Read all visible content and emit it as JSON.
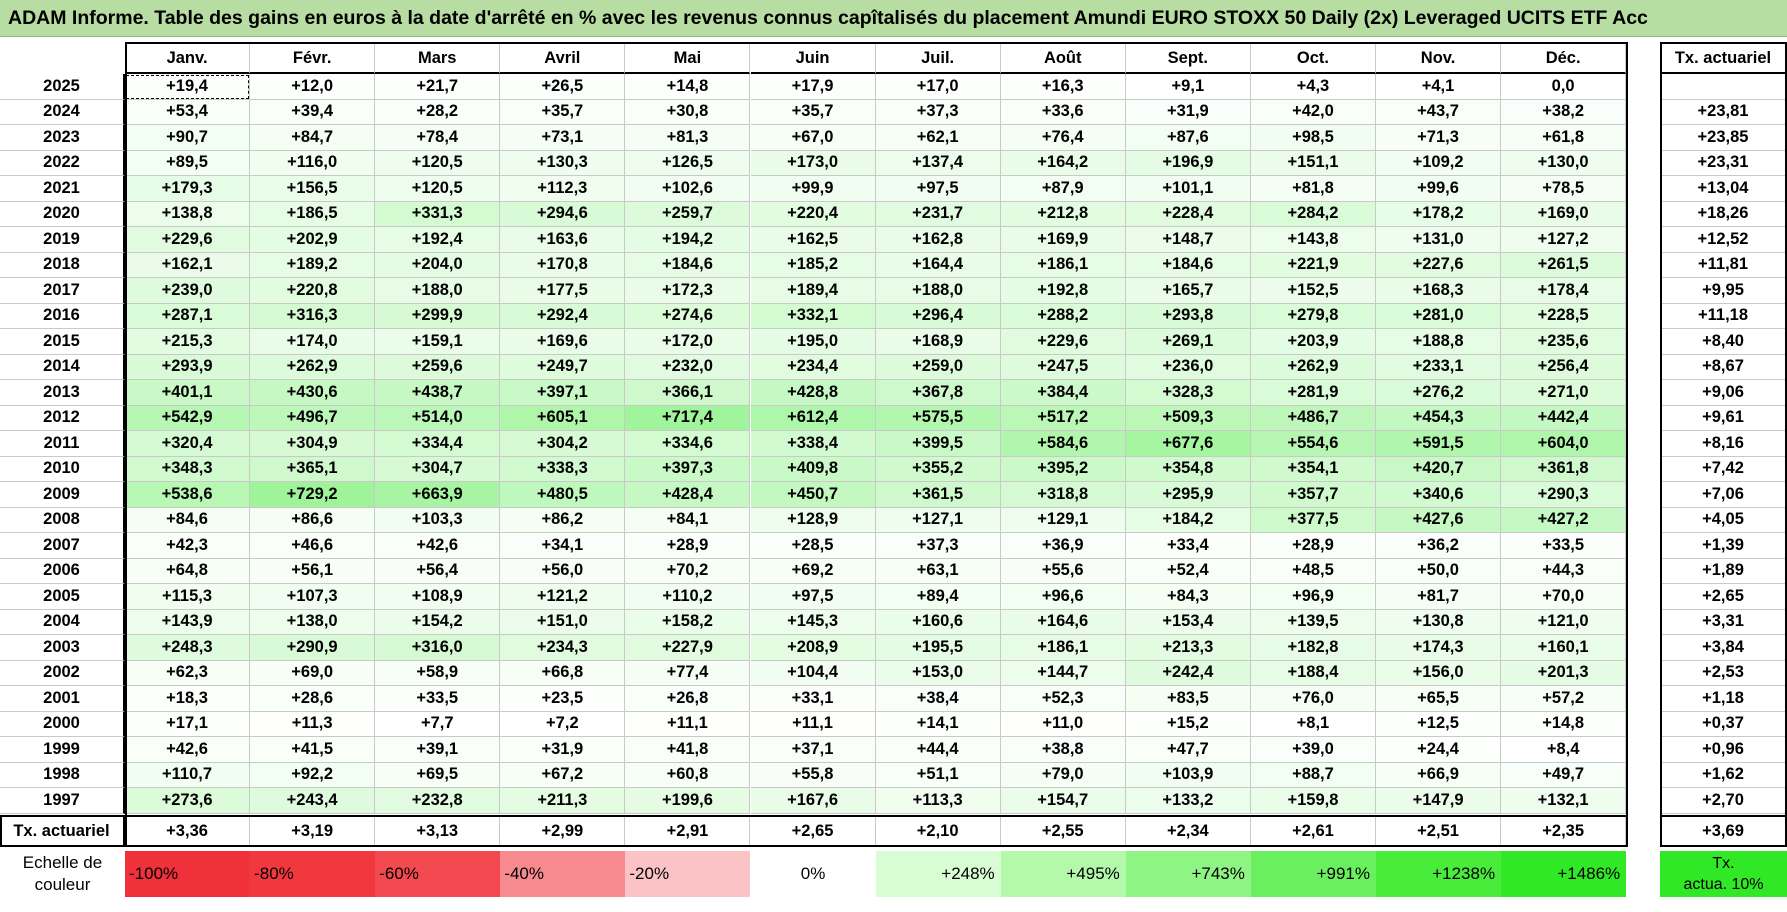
{
  "title": "ADAM Informe. Table des gains en euros à la date d'arrêté en % avec les revenus connus capîtalisés du placement Amundi EURO STOXX 50 Daily (2x) Leveraged UCITS ETF Acc",
  "months": [
    "Janv.",
    "Févr.",
    "Mars",
    "Avril",
    "Mai",
    "Juin",
    "Juil.",
    "Août",
    "Sept.",
    "Oct.",
    "Nov.",
    "Déc."
  ],
  "tx_header": "Tx. actuariel",
  "rows": [
    {
      "year": "2025",
      "values": [
        "+19,4",
        "+12,0",
        "+21,7",
        "+26,5",
        "+14,8",
        "+17,9",
        "+17,0",
        "+16,3",
        "+9,1",
        "+4,3",
        "+4,1",
        "0,0"
      ],
      "tx": ""
    },
    {
      "year": "2024",
      "values": [
        "+53,4",
        "+39,4",
        "+28,2",
        "+35,7",
        "+30,8",
        "+35,7",
        "+37,3",
        "+33,6",
        "+31,9",
        "+42,0",
        "+43,7",
        "+38,2"
      ],
      "tx": "+23,81"
    },
    {
      "year": "2023",
      "values": [
        "+90,7",
        "+84,7",
        "+78,4",
        "+73,1",
        "+81,3",
        "+67,0",
        "+62,1",
        "+76,4",
        "+87,6",
        "+98,5",
        "+71,3",
        "+61,8"
      ],
      "tx": "+23,85"
    },
    {
      "year": "2022",
      "values": [
        "+89,5",
        "+116,0",
        "+120,5",
        "+130,3",
        "+126,5",
        "+173,0",
        "+137,4",
        "+164,2",
        "+196,9",
        "+151,1",
        "+109,2",
        "+130,0"
      ],
      "tx": "+23,31"
    },
    {
      "year": "2021",
      "values": [
        "+179,3",
        "+156,5",
        "+120,5",
        "+112,3",
        "+102,6",
        "+99,9",
        "+97,5",
        "+87,9",
        "+101,1",
        "+81,8",
        "+99,6",
        "+78,5"
      ],
      "tx": "+13,04"
    },
    {
      "year": "2020",
      "values": [
        "+138,8",
        "+186,5",
        "+331,3",
        "+294,6",
        "+259,7",
        "+220,4",
        "+231,7",
        "+212,8",
        "+228,4",
        "+284,2",
        "+178,2",
        "+169,0"
      ],
      "tx": "+18,26"
    },
    {
      "year": "2019",
      "values": [
        "+229,6",
        "+202,9",
        "+192,4",
        "+163,6",
        "+194,2",
        "+162,5",
        "+162,8",
        "+169,9",
        "+148,7",
        "+143,8",
        "+131,0",
        "+127,2"
      ],
      "tx": "+12,52"
    },
    {
      "year": "2018",
      "values": [
        "+162,1",
        "+189,2",
        "+204,0",
        "+170,8",
        "+184,6",
        "+185,2",
        "+164,4",
        "+186,1",
        "+184,6",
        "+221,9",
        "+227,6",
        "+261,5"
      ],
      "tx": "+11,81"
    },
    {
      "year": "2017",
      "values": [
        "+239,0",
        "+220,8",
        "+188,0",
        "+177,5",
        "+172,3",
        "+189,4",
        "+188,0",
        "+192,8",
        "+165,7",
        "+152,5",
        "+168,3",
        "+178,4"
      ],
      "tx": "+9,95"
    },
    {
      "year": "2016",
      "values": [
        "+287,1",
        "+316,3",
        "+299,9",
        "+292,4",
        "+274,6",
        "+332,1",
        "+296,4",
        "+288,2",
        "+293,8",
        "+279,8",
        "+281,0",
        "+228,5"
      ],
      "tx": "+11,18"
    },
    {
      "year": "2015",
      "values": [
        "+215,3",
        "+174,0",
        "+159,1",
        "+169,6",
        "+172,0",
        "+195,0",
        "+168,9",
        "+229,6",
        "+269,1",
        "+203,9",
        "+188,8",
        "+235,6"
      ],
      "tx": "+8,40"
    },
    {
      "year": "2014",
      "values": [
        "+293,9",
        "+262,9",
        "+259,6",
        "+249,7",
        "+232,0",
        "+234,4",
        "+259,0",
        "+247,5",
        "+236,0",
        "+262,9",
        "+233,1",
        "+256,4"
      ],
      "tx": "+8,67"
    },
    {
      "year": "2013",
      "values": [
        "+401,1",
        "+430,6",
        "+438,7",
        "+397,1",
        "+366,1",
        "+428,8",
        "+367,8",
        "+384,4",
        "+328,3",
        "+281,9",
        "+276,2",
        "+271,0"
      ],
      "tx": "+9,06"
    },
    {
      "year": "2012",
      "values": [
        "+542,9",
        "+496,7",
        "+514,0",
        "+605,1",
        "+717,4",
        "+612,4",
        "+575,5",
        "+517,2",
        "+509,3",
        "+486,7",
        "+454,3",
        "+442,4"
      ],
      "tx": "+9,61"
    },
    {
      "year": "2011",
      "values": [
        "+320,4",
        "+304,9",
        "+334,4",
        "+304,2",
        "+334,6",
        "+338,4",
        "+399,5",
        "+584,6",
        "+677,6",
        "+554,6",
        "+591,5",
        "+604,0"
      ],
      "tx": "+8,16"
    },
    {
      "year": "2010",
      "values": [
        "+348,3",
        "+365,1",
        "+304,7",
        "+338,3",
        "+397,3",
        "+409,8",
        "+355,2",
        "+395,2",
        "+354,8",
        "+354,1",
        "+420,7",
        "+361,8"
      ],
      "tx": "+7,42"
    },
    {
      "year": "2009",
      "values": [
        "+538,6",
        "+729,2",
        "+663,9",
        "+480,5",
        "+428,4",
        "+450,7",
        "+361,5",
        "+318,8",
        "+295,9",
        "+357,7",
        "+340,6",
        "+290,3"
      ],
      "tx": "+7,06"
    },
    {
      "year": "2008",
      "values": [
        "+84,6",
        "+86,6",
        "+103,3",
        "+86,2",
        "+84,1",
        "+128,9",
        "+127,1",
        "+129,1",
        "+184,2",
        "+377,5",
        "+427,6",
        "+427,2"
      ],
      "tx": "+4,05"
    },
    {
      "year": "2007",
      "values": [
        "+42,3",
        "+46,6",
        "+42,6",
        "+34,1",
        "+28,9",
        "+28,5",
        "+37,3",
        "+36,9",
        "+33,4",
        "+28,9",
        "+36,2",
        "+33,5"
      ],
      "tx": "+1,39"
    },
    {
      "year": "2006",
      "values": [
        "+64,8",
        "+56,1",
        "+56,4",
        "+56,0",
        "+70,2",
        "+69,2",
        "+63,1",
        "+55,6",
        "+52,4",
        "+48,5",
        "+50,0",
        "+44,3"
      ],
      "tx": "+1,89"
    },
    {
      "year": "2005",
      "values": [
        "+115,3",
        "+107,3",
        "+108,9",
        "+121,2",
        "+110,2",
        "+97,5",
        "+89,4",
        "+96,6",
        "+84,3",
        "+96,9",
        "+81,7",
        "+70,0"
      ],
      "tx": "+2,65"
    },
    {
      "year": "2004",
      "values": [
        "+143,9",
        "+138,0",
        "+154,2",
        "+151,0",
        "+158,2",
        "+145,3",
        "+160,6",
        "+164,6",
        "+153,4",
        "+139,5",
        "+130,8",
        "+121,0"
      ],
      "tx": "+3,31"
    },
    {
      "year": "2003",
      "values": [
        "+248,3",
        "+290,9",
        "+316,0",
        "+234,3",
        "+227,9",
        "+208,9",
        "+195,5",
        "+186,1",
        "+213,3",
        "+182,8",
        "+174,3",
        "+160,1"
      ],
      "tx": "+3,84"
    },
    {
      "year": "2002",
      "values": [
        "+62,3",
        "+69,0",
        "+58,9",
        "+66,8",
        "+77,4",
        "+104,4",
        "+153,0",
        "+144,7",
        "+242,4",
        "+188,4",
        "+156,0",
        "+201,3"
      ],
      "tx": "+2,53"
    },
    {
      "year": "2001",
      "values": [
        "+18,3",
        "+28,6",
        "+33,5",
        "+23,5",
        "+26,8",
        "+33,1",
        "+38,4",
        "+52,3",
        "+83,5",
        "+76,0",
        "+65,5",
        "+57,2"
      ],
      "tx": "+1,18"
    },
    {
      "year": "2000",
      "values": [
        "+17,1",
        "+11,3",
        "+7,7",
        "+7,2",
        "+11,1",
        "+11,1",
        "+14,1",
        "+11,0",
        "+15,2",
        "+8,1",
        "+12,5",
        "+14,8"
      ],
      "tx": "+0,37"
    },
    {
      "year": "1999",
      "values": [
        "+42,6",
        "+41,5",
        "+39,1",
        "+31,9",
        "+41,8",
        "+37,1",
        "+44,4",
        "+38,8",
        "+47,7",
        "+39,0",
        "+24,4",
        "+8,4"
      ],
      "tx": "+0,96"
    },
    {
      "year": "1998",
      "values": [
        "+110,7",
        "+92,2",
        "+69,5",
        "+67,2",
        "+60,8",
        "+55,8",
        "+51,1",
        "+79,0",
        "+103,9",
        "+88,7",
        "+66,9",
        "+49,7"
      ],
      "tx": "+1,62"
    },
    {
      "year": "1997",
      "values": [
        "+273,6",
        "+243,4",
        "+232,8",
        "+211,3",
        "+199,6",
        "+167,6",
        "+113,3",
        "+154,7",
        "+133,2",
        "+159,8",
        "+147,9",
        "+132,1"
      ],
      "tx": "+2,70"
    }
  ],
  "footer": {
    "label": "Tx. actuariel",
    "values": [
      "+3,36",
      "+3,19",
      "+3,13",
      "+2,99",
      "+2,91",
      "+2,65",
      "+2,10",
      "+2,55",
      "+2,34",
      "+2,61",
      "+2,51",
      "+2,35"
    ],
    "tx": "+3,69"
  },
  "scale": {
    "label_line1": "Echelle de",
    "label_line2": "couleur",
    "items": [
      {
        "text": "-100%",
        "color": "#f0303a"
      },
      {
        "text": "-80%",
        "color": "#f2383f"
      },
      {
        "text": "-60%",
        "color": "#f34a52"
      },
      {
        "text": "-40%",
        "color": "#f78a8e"
      },
      {
        "text": "-20%",
        "color": "#fbc3c5"
      },
      {
        "text": "0%",
        "color": "#ffffff"
      },
      {
        "text": "+248%",
        "color": "#d8fcd4"
      },
      {
        "text": "+495%",
        "color": "#b4f8ac"
      },
      {
        "text": "+743%",
        "color": "#8ef484"
      },
      {
        "text": "+991%",
        "color": "#6af05e"
      },
      {
        "text": "+1238%",
        "color": "#4aec3c"
      },
      {
        "text": "+1486%",
        "color": "#30e826"
      }
    ],
    "tx_line1": "Tx.",
    "tx_line2": "actua. 10%",
    "tx_color": "#30e826"
  }
}
